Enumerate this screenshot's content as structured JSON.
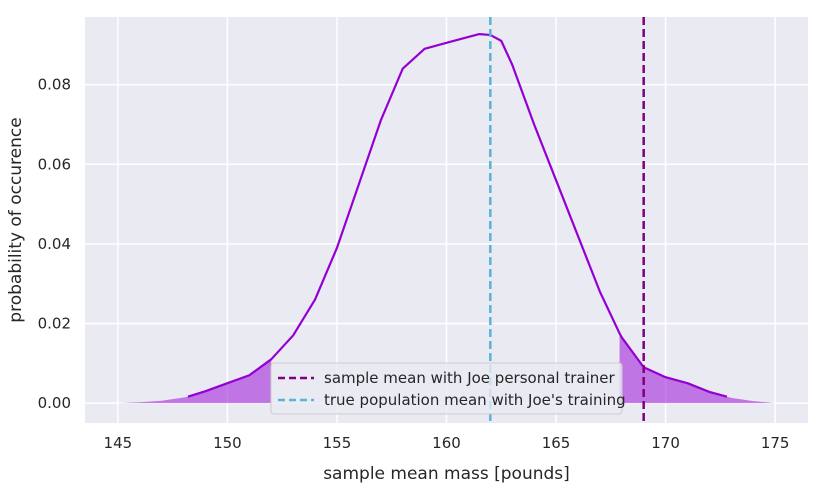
{
  "chart_data": {
    "type": "line",
    "xlabel": "sample mean mass [pounds]",
    "ylabel": "probability of occurence",
    "xlim": [
      143.5,
      176.5
    ],
    "ylim": [
      -0.005,
      0.097
    ],
    "xticks": [
      145,
      150,
      155,
      160,
      165,
      170,
      175
    ],
    "yticks": [
      0.0,
      0.02,
      0.04,
      0.06,
      0.08
    ],
    "ytick_labels": [
      "0.00",
      "0.02",
      "0.04",
      "0.06",
      "0.08"
    ],
    "grid": true,
    "legend_position": "lower center",
    "kde": {
      "color": "#9400d3",
      "x": [
        145,
        146,
        147,
        148,
        148.2,
        149,
        150,
        151,
        152,
        153,
        154,
        155,
        156,
        157,
        158,
        159,
        160,
        161,
        161.5,
        162,
        162.5,
        163,
        164,
        165,
        166,
        167,
        167.9,
        168,
        169,
        170,
        171,
        172,
        172.8,
        173,
        174,
        175
      ],
      "y": [
        0.0,
        0.0002,
        0.0006,
        0.0014,
        0.0016,
        0.003,
        0.005,
        0.007,
        0.011,
        0.017,
        0.026,
        0.039,
        0.055,
        0.071,
        0.084,
        0.089,
        0.0905,
        0.092,
        0.0927,
        0.0925,
        0.091,
        0.085,
        0.07,
        0.056,
        0.042,
        0.028,
        0.0175,
        0.0165,
        0.009,
        0.0065,
        0.005,
        0.0028,
        0.0016,
        0.0013,
        0.0005,
        0.0
      ]
    },
    "line_segment_x": [
      148.2,
      172.8
    ],
    "shaded_regions": [
      [
        145,
        152
      ],
      [
        167.9,
        175
      ]
    ],
    "shade_color": "#9400d3",
    "vlines": [
      {
        "name": "sample mean with Joe personal trainer",
        "x": 169,
        "color": "#800080"
      },
      {
        "name": "true population mean with Joe's training",
        "x": 162,
        "color": "#5bb3d6"
      }
    ]
  }
}
